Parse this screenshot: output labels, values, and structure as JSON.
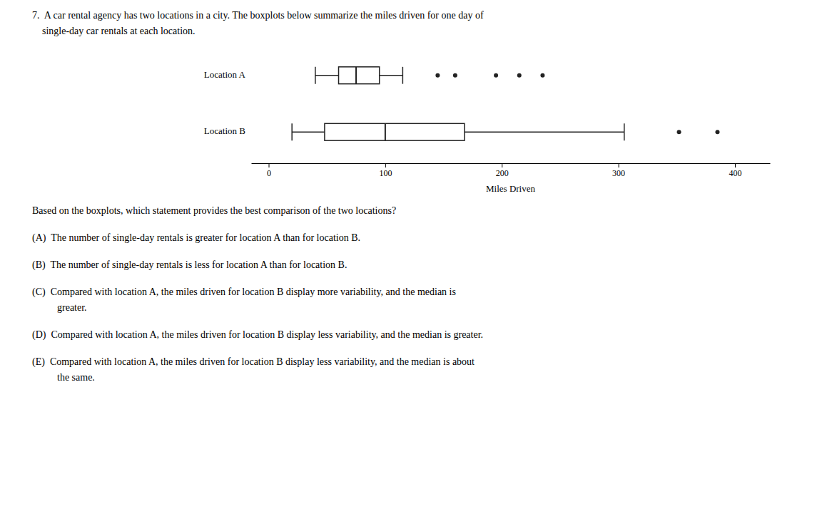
{
  "chart_data": {
    "type": "boxplot",
    "title": "7.  A car rental agency has two locations in a city. The boxplots below summarize the miles driven for one day of",
    "subtitle": "    single-day car rentals at each location.",
    "categories": [
      "Location A",
      "Location B"
    ],
    "stats": [
      {
        "whisker_low": 40,
        "q1": 60,
        "median": 75,
        "q3": 95,
        "whisker_high": 115,
        "outliers": [
          145,
          160,
          195,
          215,
          235
        ]
      },
      {
        "whisker_low": 20,
        "q1": 48,
        "median": 100,
        "q3": 168,
        "whisker_high": 305,
        "outliers": [
          352,
          385
        ]
      }
    ],
    "x_label": "Miles Driven",
    "xlim": [
      -15,
      430
    ],
    "xticks": [
      0,
      100,
      200,
      300,
      400
    ],
    "grid": false,
    "annotations": [
      "Based on the boxplots, which statement provides the best comparison of the two locations?",
      "(A)  The number of single-day rentals is greater for location A than for location B.",
      "(B)  The number of single-day rentals is less for location A than for location B.",
      "(C)  Compared with location A, the miles driven for location B display more variability, and the median is",
      "greater.",
      "(D)  Compared with location A, the miles driven for location B display less variability, and the median is greater.",
      "(E)  Compared with location A, the miles driven for location B display less variability, and the median is about",
      "the same."
    ]
  }
}
